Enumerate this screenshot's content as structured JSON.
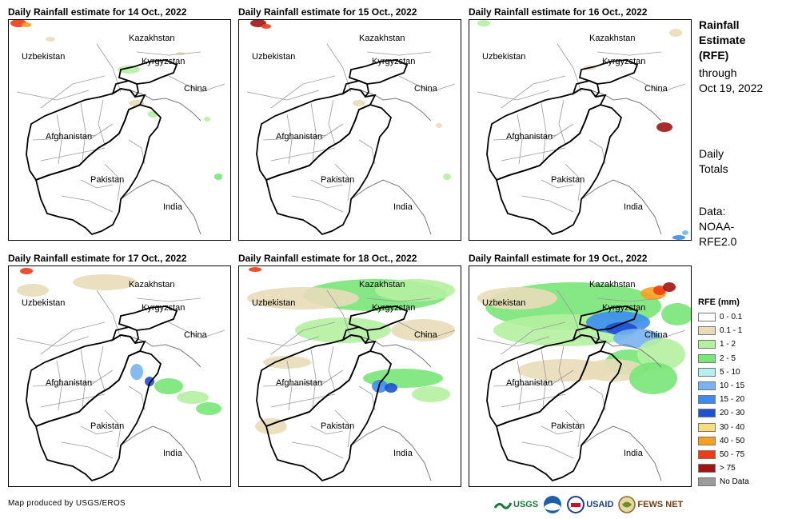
{
  "panels": [
    {
      "title": "Daily Rainfall estimate for 14 Oct., 2022"
    },
    {
      "title": "Daily Rainfall estimate for 15 Oct., 2022"
    },
    {
      "title": "Daily Rainfall estimate for 16 Oct., 2022"
    },
    {
      "title": "Daily Rainfall estimate for 17 Oct., 2022"
    },
    {
      "title": "Daily Rainfall estimate for 18 Oct., 2022"
    },
    {
      "title": "Daily Rainfall estimate for 19 Oct., 2022"
    }
  ],
  "country_labels": {
    "kazakhstan": "Kazakhstan",
    "uzbekistan": "Uzbekistan",
    "kyrgyzstan": "Kyrgyzstan",
    "china": "China",
    "afghanistan": "Afghanistan",
    "pakistan": "Pakistan",
    "india": "India"
  },
  "sidebar": {
    "title_line1": "Rainfall",
    "title_line2": "Estimate",
    "title_line3": "(RFE)",
    "through": "through",
    "date": "Oct 19, 2022",
    "daily1": "Daily",
    "daily2": "Totals",
    "data1": "Data:",
    "data2": "NOAA-",
    "data3": "RFE2.0"
  },
  "legend": {
    "title": "RFE (mm)",
    "items": [
      {
        "label": "0 - 0.1",
        "color": "#ffffff"
      },
      {
        "label": "0.1 - 1",
        "color": "#e8dcb8"
      },
      {
        "label": "1 - 2",
        "color": "#b4f0a0"
      },
      {
        "label": "2 - 5",
        "color": "#78e678"
      },
      {
        "label": "5 - 10",
        "color": "#b4f0f0"
      },
      {
        "label": "10 - 15",
        "color": "#78b4f0"
      },
      {
        "label": "15 - 20",
        "color": "#3c8cf0"
      },
      {
        "label": "20 - 30",
        "color": "#1e50d2"
      },
      {
        "label": "30 - 40",
        "color": "#fadc78"
      },
      {
        "label": "40 - 50",
        "color": "#faa01e"
      },
      {
        "label": "50 - 75",
        "color": "#f03c14"
      },
      {
        "label": "> 75",
        "color": "#a01414"
      },
      {
        "label": "No Data",
        "color": "#9b9b9b"
      }
    ]
  },
  "credit": "Map produced by USGS/EROS",
  "logos": {
    "usgs": "USGS",
    "usaid": "USAID",
    "fewsnet": "FEWS NET"
  }
}
